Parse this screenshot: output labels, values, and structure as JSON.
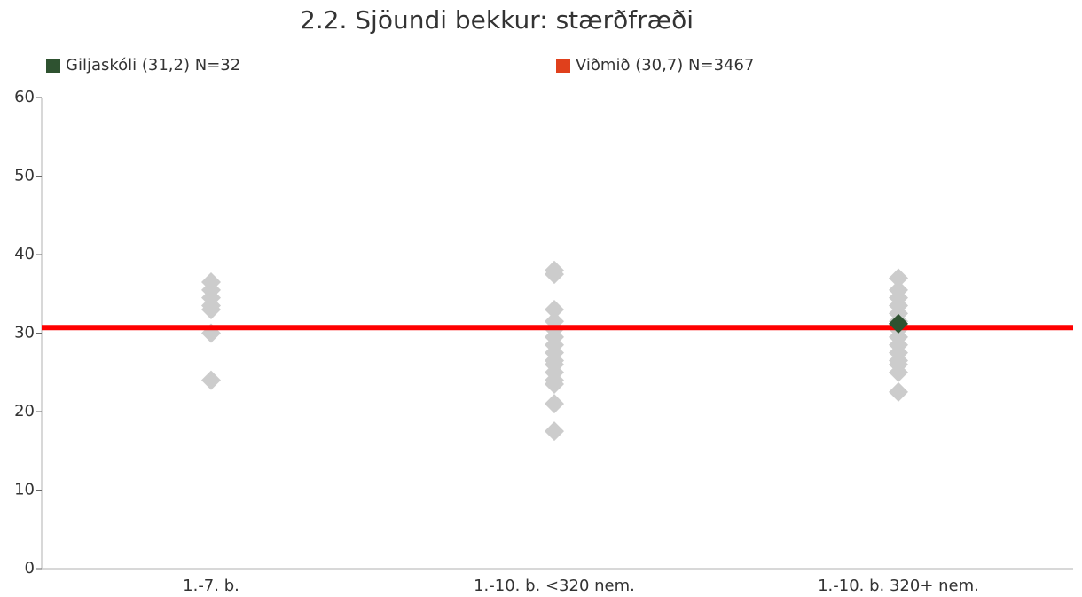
{
  "chart_data": {
    "type": "strip",
    "title": "2.2. Sjöundi bekkur: stærðfræði",
    "categories": [
      "1.-7. b.",
      "1.-10. b. <320 nem.",
      "1.-10. b. 320+ nem."
    ],
    "others": {
      "color": "#cccccc",
      "values": [
        [
          36.5,
          35.5,
          34.5,
          33.5,
          33,
          30,
          24
        ],
        [
          38,
          37.5,
          33,
          31.5,
          30.5,
          29.5,
          28.5,
          27.5,
          26.5,
          26,
          25,
          24,
          23.5,
          21,
          17.5
        ],
        [
          37,
          35.5,
          34.5,
          33.5,
          32.5,
          31.5,
          30.5,
          29.5,
          28.5,
          27.5,
          26.5,
          26,
          25,
          22.5
        ]
      ]
    },
    "series": [
      {
        "name": "Giljaskóli (31,2) N=32",
        "color": "#2e5230",
        "values": [
          null,
          null,
          31.2
        ]
      },
      {
        "name": "Viðmið (30,7) N=3467",
        "color": "#e0401c",
        "line_color": "#ff0000",
        "value": 30.7
      }
    ],
    "ylim": [
      0,
      60
    ],
    "yticks": [
      0,
      10,
      20,
      30,
      40,
      50,
      60
    ]
  }
}
